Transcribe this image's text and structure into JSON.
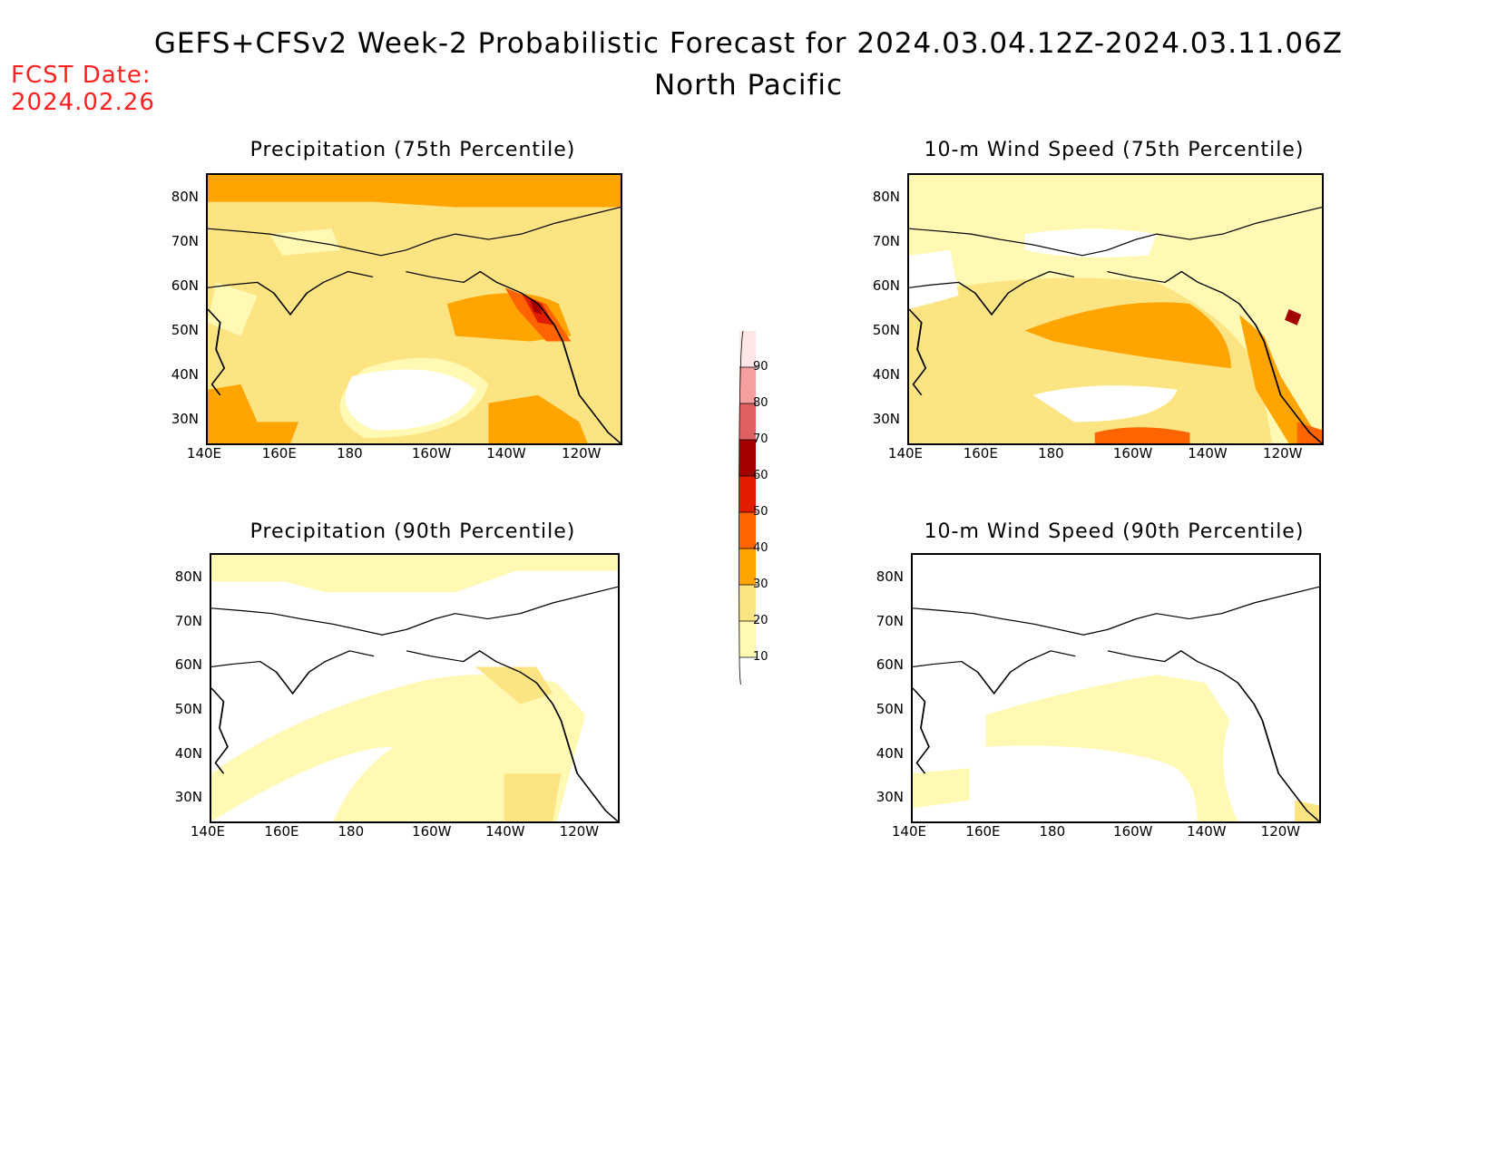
{
  "header": {
    "title": "GEFS+CFSv2 Week-2 Probabilistic Forecast for 2024.03.04.12Z-2024.03.11.06Z",
    "subtitle": "North Pacific",
    "fcst_label": "FCST Date:",
    "fcst_date": "2024.02.26"
  },
  "panels": [
    {
      "title": "Precipitation (75th Percentile)",
      "level": "high"
    },
    {
      "title": "10-m Wind Speed (75th Percentile)",
      "level": "high-wind"
    },
    {
      "title": "Precipitation (90th Percentile)",
      "level": "low"
    },
    {
      "title": "10-m Wind Speed (90th Percentile)",
      "level": "low-wind"
    }
  ],
  "axes": {
    "lat_labels": [
      "80N",
      "70N",
      "60N",
      "50N",
      "40N",
      "30N"
    ],
    "lon_labels": [
      "140E",
      "160E",
      "180",
      "160W",
      "140W",
      "120W"
    ]
  },
  "colorbar": {
    "levels": [
      "10",
      "20",
      "30",
      "40",
      "50",
      "60",
      "70",
      "80",
      "90"
    ],
    "colors": [
      "#fff9b4",
      "#fde482",
      "#ffa400",
      "#ff6400",
      "#e11c00",
      "#a50000",
      "#de6060",
      "#f5a0a0",
      "#ffe6e6"
    ]
  }
}
